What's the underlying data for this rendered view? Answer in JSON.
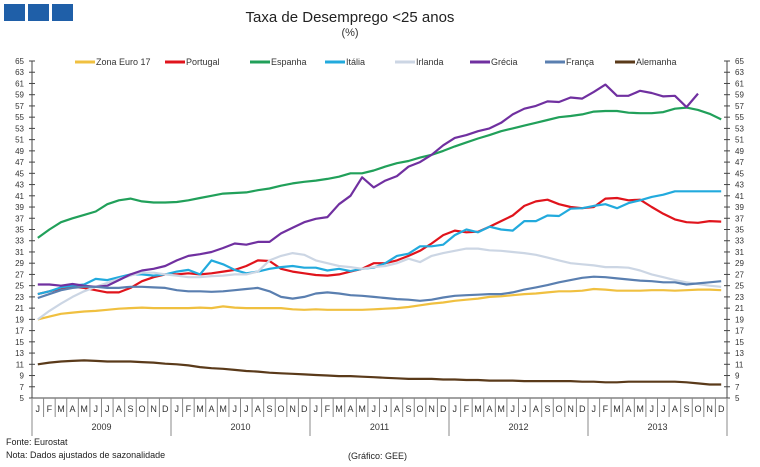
{
  "header": {
    "title": "Taxa de Desemprego <25 anos",
    "subtitle": "(%)"
  },
  "footer": {
    "source": "Fonte: Eurostat",
    "note": "Nota: Dados ajustados de sazonalidade",
    "credit": "(Gráfico: GEE)"
  },
  "logo": {
    "icon": "three-blue-squares-logo"
  },
  "chart_data": {
    "type": "line",
    "title": "Taxa de Desemprego <25 anos",
    "subtitle": "(%)",
    "ylim": [
      5,
      65
    ],
    "yticks": [
      5,
      7,
      9,
      11,
      13,
      15,
      17,
      19,
      21,
      23,
      25,
      27,
      29,
      31,
      33,
      35,
      37,
      39,
      41,
      43,
      45,
      47,
      49,
      51,
      53,
      55,
      57,
      59,
      61,
      63,
      65
    ],
    "months": [
      "J",
      "F",
      "M",
      "A",
      "M",
      "J",
      "J",
      "A",
      "S",
      "O",
      "N",
      "D"
    ],
    "years": [
      "2009",
      "2010",
      "2011",
      "2012",
      "2013"
    ],
    "legend_position": "top",
    "series": [
      {
        "name": "Zona Euro 17",
        "color": "#F0C040",
        "values": [
          19,
          19.5,
          20,
          20.2,
          20.4,
          20.5,
          20.7,
          20.9,
          21,
          21.1,
          21,
          21,
          21,
          21,
          21.1,
          21,
          21.3,
          21.1,
          21,
          21,
          21,
          21,
          20.8,
          20.7,
          20.8,
          20.7,
          20.7,
          20.7,
          20.7,
          20.8,
          20.9,
          21,
          21.2,
          21.5,
          21.8,
          22,
          22.3,
          22.5,
          22.7,
          23,
          23.1,
          23.3,
          23.5,
          23.6,
          23.8,
          24,
          24,
          24.1,
          24.4,
          24.3,
          24.1,
          24.1,
          24.1,
          24.2,
          24.2,
          24.1,
          24.2,
          24.3,
          24.3,
          24.2
        ]
      },
      {
        "name": "Portugal",
        "color": "#E0141C",
        "values": [
          23.5,
          24,
          24.5,
          24.8,
          24.6,
          24.2,
          23.8,
          23.8,
          24.6,
          25.8,
          26.5,
          27,
          27,
          27.2,
          27,
          27.2,
          27.5,
          27.8,
          28.5,
          29.5,
          29.4,
          28,
          27.5,
          27.2,
          26.9,
          26.8,
          27,
          27.5,
          28,
          29,
          29,
          29.5,
          30.3,
          31.2,
          32.5,
          34,
          34.8,
          34.5,
          34.6,
          35.5,
          36.5,
          37.5,
          39.2,
          40,
          40.3,
          39.5,
          39,
          38.8,
          39,
          40.5,
          40.6,
          40.2,
          40.3,
          39,
          37.8,
          36.8,
          36.3,
          36.2,
          36.5,
          36.4
        ]
      },
      {
        "name": "Espanha",
        "color": "#21A05A",
        "values": [
          33.5,
          35,
          36.3,
          37,
          37.6,
          38.2,
          39.5,
          40.2,
          40.5,
          40,
          39.8,
          39.8,
          39.9,
          40.2,
          40.6,
          41,
          41.4,
          41.5,
          41.6,
          42,
          42.3,
          42.8,
          43.2,
          43.5,
          43.7,
          44,
          44.4,
          45,
          45,
          45.5,
          46.2,
          46.8,
          47.2,
          47.8,
          48.3,
          49,
          49.8,
          50.5,
          51.2,
          51.8,
          52.5,
          53,
          53.5,
          54,
          54.5,
          55,
          55.2,
          55.5,
          56,
          56.1,
          56.1,
          55.8,
          55.7,
          55.7,
          55.9,
          56.5,
          56.7,
          56.3,
          55.6,
          54.6
        ]
      },
      {
        "name": "Itália",
        "color": "#22AADD",
        "values": [
          23.5,
          24,
          24.7,
          25,
          25.2,
          26.2,
          26,
          26.5,
          27,
          27,
          26.8,
          27,
          27.5,
          27.8,
          27,
          29.5,
          28.8,
          27.8,
          27.2,
          27.5,
          28,
          28.3,
          28.5,
          28.2,
          28.2,
          27.7,
          28,
          27.6,
          28,
          28.2,
          29,
          30.3,
          30.7,
          32,
          32,
          32.3,
          34,
          35,
          34.5,
          35.5,
          35,
          34.8,
          36.5,
          36.5,
          37.5,
          37.4,
          38.7,
          38.8,
          39.2,
          39.5,
          38.8,
          39.7,
          40.2,
          40.8,
          41.2,
          41.8,
          41.8,
          41.8,
          41.8,
          41.8
        ]
      },
      {
        "name": "Irlanda",
        "color": "#CCD6E4",
        "values": [
          19,
          20.5,
          21.8,
          23,
          24,
          24.8,
          25.5,
          26.2,
          26.8,
          27.3,
          27.3,
          27,
          26.8,
          26.5,
          26.5,
          26.7,
          26.8,
          27,
          27,
          27.5,
          29.5,
          30.3,
          30.8,
          30.5,
          29.5,
          29,
          28.5,
          28.3,
          28,
          28.3,
          28.5,
          29,
          29.8,
          29.2,
          30.3,
          30.8,
          31.2,
          31.6,
          31.6,
          31.3,
          31.2,
          31,
          30.8,
          30.5,
          30,
          29.5,
          29,
          28.8,
          28.6,
          28.3,
          28.3,
          28.2,
          27.7,
          27,
          26.5,
          26,
          25.6,
          25.3,
          25,
          24.8
        ]
      },
      {
        "name": "Grécia",
        "color": "#7030A0",
        "values": [
          25.2,
          25.2,
          25,
          25.3,
          25,
          24.8,
          25,
          26,
          27,
          27.7,
          28,
          28.5,
          29.5,
          30.3,
          30.6,
          31,
          31.7,
          32.5,
          32.3,
          32.8,
          32.8,
          34.3,
          35.3,
          36.3,
          36.9,
          37.2,
          39.5,
          41,
          44.3,
          42.5,
          43.7,
          44.5,
          46.2,
          47,
          48.3,
          50,
          51.3,
          51.8,
          52.5,
          53,
          54,
          55.5,
          56.5,
          57,
          57.8,
          57.7,
          58.5,
          58.3,
          59.5,
          60.8,
          58.8,
          58.8,
          59.7,
          59.3,
          58.7,
          58.8,
          56.8,
          59.2
        ]
      },
      {
        "name": "França",
        "color": "#5A7FB0",
        "values": [
          22.8,
          23.5,
          24.2,
          24.6,
          24.8,
          24.8,
          24.6,
          24.6,
          24.8,
          24.8,
          24.7,
          24.6,
          24.2,
          24,
          24,
          23.9,
          24,
          24.2,
          24.4,
          24.6,
          24,
          23,
          22.7,
          23,
          23.6,
          23.8,
          23.6,
          23.3,
          23.2,
          23,
          22.8,
          22.6,
          22.5,
          22.3,
          22.5,
          22.9,
          23.2,
          23.3,
          23.4,
          23.5,
          23.5,
          23.8,
          24.3,
          24.7,
          25.1,
          25.6,
          26,
          26.4,
          26.6,
          26.5,
          26.3,
          26.1,
          25.9,
          25.8,
          25.6,
          25.6,
          25.2,
          25.4,
          25.6,
          25.8
        ]
      },
      {
        "name": "Alemanha",
        "color": "#5A3A1A",
        "values": [
          11,
          11.3,
          11.5,
          11.6,
          11.7,
          11.6,
          11.5,
          11.5,
          11.5,
          11.4,
          11.3,
          11.1,
          11,
          10.8,
          10.5,
          10.3,
          10.2,
          10,
          9.8,
          9.7,
          9.5,
          9.4,
          9.3,
          9.2,
          9.1,
          9,
          8.9,
          8.9,
          8.8,
          8.7,
          8.6,
          8.5,
          8.4,
          8.4,
          8.4,
          8.3,
          8.3,
          8.2,
          8.2,
          8.1,
          8.1,
          8.1,
          8,
          8,
          8,
          8,
          8,
          7.9,
          7.9,
          7.8,
          7.8,
          7.9,
          7.9,
          7.9,
          7.9,
          7.9,
          7.8,
          7.6,
          7.4,
          7.4
        ]
      }
    ]
  }
}
